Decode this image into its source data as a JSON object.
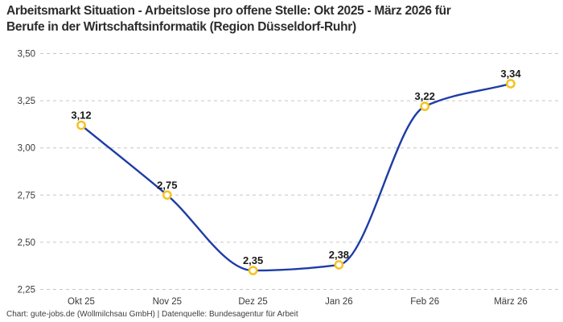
{
  "header": {
    "title_lines": [
      "Arbeitsmarkt Situation - Arbeitslose pro offene Stelle: Okt 2025 - März 2026 für",
      "Berufe in der Wirtschaftsinformatik (Region Düsseldorf-Ruhr)"
    ]
  },
  "footer": {
    "credit": "Chart: gute-jobs.de (Wollmilchsau GmbH) | Datenquelle: Bundesagentur für Arbeit"
  },
  "chart_data": {
    "type": "line",
    "title": "Arbeitsmarkt Situation - Arbeitslose pro offene Stelle: Okt 2025 - März 2026 für Berufe in der Wirtschaftsinformatik (Region Düsseldorf-Ruhr)",
    "categories": [
      "Okt 25",
      "Nov 25",
      "Dez 25",
      "Jan 26",
      "Feb 26",
      "März 26"
    ],
    "values": [
      3.12,
      2.75,
      2.35,
      2.38,
      3.22,
      3.34
    ],
    "point_labels": [
      "3,12",
      "2,75",
      "2,35",
      "2,38",
      "3,22",
      "3,34"
    ],
    "y_ticks": [
      2.25,
      2.5,
      2.75,
      3.0,
      3.25,
      3.5
    ],
    "y_tick_labels": [
      "2,25",
      "2,50",
      "2,75",
      "3,00",
      "3,25",
      "3,50"
    ],
    "ylim": [
      2.25,
      3.5
    ],
    "xlabel": "",
    "ylabel": "",
    "legend": "none",
    "grid": "horizontal-dashed",
    "line_style": "smooth",
    "colors": {
      "line": "#1e3ca6",
      "marker_stroke": "#f6c21f",
      "marker_fill": "#ffffff",
      "grid": "#c6c6c6",
      "axis_text": "#3a3a3a",
      "value_label": "#1a1a1a",
      "title": "#2c2c2c",
      "background": "#ffffff"
    }
  }
}
